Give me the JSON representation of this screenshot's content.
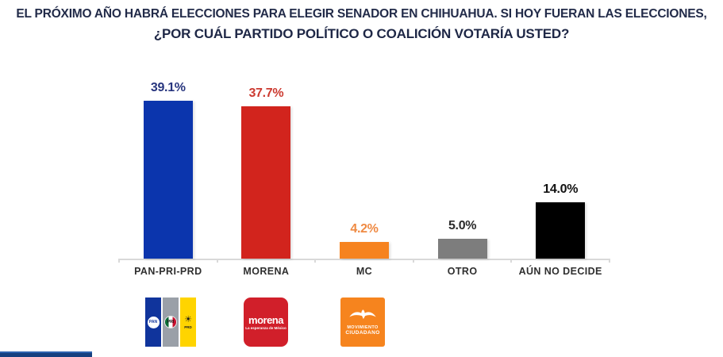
{
  "title": {
    "line1": "EL PRÓXIMO AÑO HABRÁ ELECCIONES PARA ELEGIR SENADOR EN CHIHUAHUA. SI HOY FUERAN LAS ELECCIONES,",
    "line2": "¿POR CUÁL PARTIDO POLÍTICO O COALICIÓN VOTARÍA USTED?"
  },
  "chart_data": {
    "type": "bar",
    "title": "EL PRÓXIMO AÑO HABRÁ ELECCIONES PARA ELEGIR SENADOR EN CHIHUAHUA. SI HOY FUERAN LAS ELECCIONES, ¿POR CUÁL PARTIDO POLÍTICO O COALICIÓN VOTARÍA USTED?",
    "categories": [
      "PAN-PRI-PRD",
      "MORENA",
      "MC",
      "OTRO",
      "AÚN NO DECIDE"
    ],
    "values": [
      39.1,
      37.7,
      4.2,
      5.0,
      14.0
    ],
    "value_labels": [
      "39.1%",
      "37.7%",
      "4.2%",
      "5.0%",
      "14.0%"
    ],
    "bar_colors": [
      "#0b35ad",
      "#d2241d",
      "#f6831f",
      "#7d7d7d",
      "#000000"
    ],
    "value_label_colors": [
      "#27357e",
      "#cc3a30",
      "#ef8a43",
      "#2b2b2b",
      "#111111"
    ],
    "xlabel": "",
    "ylabel": "",
    "ylim": [
      0,
      42
    ],
    "grid": false,
    "legend": false,
    "value_labels_shown": true
  },
  "logos": {
    "coalition": {
      "pan": "PAN",
      "pri": "PRI",
      "prd": "PRD",
      "sun_glyph": "☀"
    },
    "morena": {
      "name": "morena",
      "tagline": "La esperanza de México"
    },
    "mc": {
      "line1": "MOVIMIENTO",
      "line2": "CIUDADANO"
    }
  },
  "colors": {
    "title": "#222b49",
    "axis": "#d9d9d9",
    "footer_bar": "#1b4a91"
  }
}
